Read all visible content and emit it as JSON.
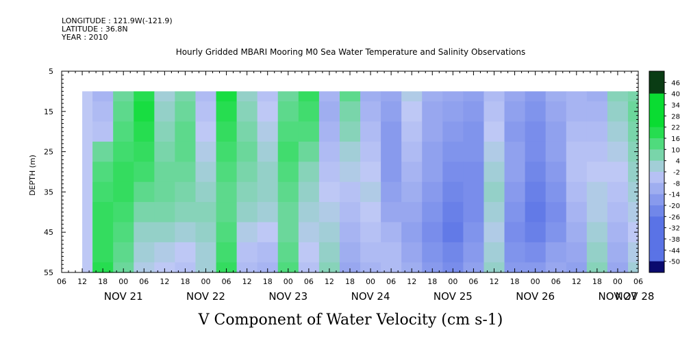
{
  "header": {
    "longitude": "LONGITUDE : 121.9W(-121.9)",
    "latitude": "LATITUDE : 36.8N",
    "year": "YEAR : 2010"
  },
  "chart_data": {
    "type": "heatmap",
    "title": "Hourly Gridded MBARI Mooring M0 Sea Water Temperature and Salinity Observations",
    "xlabel": "V Component of Water Velocity (cm s-1)",
    "ylabel": "DEPTH (m)",
    "ylim": [
      55,
      5
    ],
    "y_ticks": [
      5,
      15,
      25,
      35,
      45,
      55
    ],
    "x_start": "2010-11-21 06:00",
    "x_end": "2010-11-28 06:00",
    "x_hour_ticks": [
      "06",
      "12",
      "18",
      "00",
      "06",
      "12",
      "18",
      "00",
      "06",
      "12",
      "18",
      "00",
      "06",
      "12",
      "18",
      "00",
      "06",
      "12",
      "18",
      "00",
      "06",
      "12",
      "18",
      "00",
      "06",
      "12",
      "18",
      "00",
      "06"
    ],
    "x_day_labels": [
      "NOV 21",
      "NOV 22",
      "NOV 23",
      "NOV 24",
      "NOV 25",
      "NOV 26",
      "NOV 27",
      "NOV 28"
    ],
    "data_start": "2010-11-21 12:00",
    "data_depth_range": [
      10,
      55
    ],
    "colorbar_levels": [
      "46",
      "40",
      "34",
      "28",
      "22",
      "16",
      "10",
      "4",
      "-2",
      "-8",
      "-14",
      "-20",
      "-26",
      "-32",
      "-38",
      "-44",
      "-50"
    ],
    "colors": {
      "strong_positive": "#00c83c",
      "positive": "#28e664",
      "weak_positive": "#96f0a0",
      "near_zero": "#b4bef5",
      "weak_negative": "#a0aaf0",
      "negative": "#7d8ceb",
      "strong_negative": "#5a6ee6",
      "colorbar_top": "#0a3c14",
      "colorbar_bottom": "#0a0a6e"
    },
    "v_component_grid": {
      "depths": [
        10,
        15,
        20,
        25,
        30,
        35,
        40,
        45,
        50,
        55
      ],
      "times_hours_from_start": [
        6,
        12,
        18,
        24,
        30,
        36,
        42,
        48,
        54,
        60,
        66,
        72,
        78,
        84,
        90,
        96,
        102,
        108,
        114,
        120,
        126,
        132,
        138,
        144,
        150,
        156,
        162,
        168
      ],
      "values_cm_s": [
        [
          0,
          -6,
          12,
          22,
          4,
          10,
          -4,
          24,
          6,
          -2,
          12,
          20,
          -6,
          14,
          -8,
          -10,
          2,
          -8,
          -10,
          -12,
          -4,
          -10,
          -14,
          -8,
          -6,
          -8,
          8,
          10
        ],
        [
          0,
          -4,
          14,
          24,
          6,
          12,
          -2,
          22,
          8,
          0,
          14,
          18,
          -8,
          10,
          -6,
          -12,
          0,
          -10,
          -12,
          -14,
          -2,
          -12,
          -16,
          -10,
          -6,
          -6,
          6,
          12
        ],
        [
          0,
          -2,
          16,
          22,
          8,
          14,
          0,
          20,
          10,
          2,
          16,
          16,
          -6,
          8,
          -4,
          -14,
          -2,
          -10,
          -14,
          -16,
          0,
          -14,
          -18,
          -12,
          -4,
          -4,
          4,
          10
        ],
        [
          0,
          12,
          18,
          20,
          10,
          14,
          2,
          18,
          12,
          4,
          18,
          12,
          -4,
          4,
          -2,
          -14,
          -4,
          -12,
          -16,
          -16,
          2,
          -12,
          -18,
          -12,
          -2,
          -2,
          2,
          8
        ],
        [
          0,
          16,
          20,
          18,
          12,
          12,
          4,
          16,
          10,
          6,
          16,
          8,
          -2,
          2,
          0,
          -14,
          -6,
          -12,
          -18,
          -18,
          4,
          -12,
          -20,
          -14,
          -2,
          0,
          0,
          6
        ],
        [
          0,
          18,
          20,
          14,
          12,
          10,
          6,
          14,
          8,
          6,
          14,
          6,
          0,
          -2,
          2,
          -12,
          -8,
          -14,
          -20,
          -18,
          6,
          -14,
          -22,
          -16,
          -4,
          2,
          -2,
          4
        ],
        [
          0,
          20,
          18,
          10,
          10,
          8,
          8,
          14,
          6,
          4,
          12,
          4,
          2,
          -4,
          0,
          -10,
          -10,
          -16,
          -22,
          -18,
          4,
          -16,
          -24,
          -18,
          -6,
          2,
          -4,
          2
        ],
        [
          0,
          20,
          16,
          6,
          6,
          4,
          6,
          16,
          2,
          0,
          12,
          2,
          4,
          -6,
          -2,
          -6,
          -12,
          -18,
          -24,
          -16,
          2,
          -18,
          -22,
          -16,
          -8,
          4,
          -6,
          0
        ],
        [
          0,
          20,
          14,
          4,
          2,
          0,
          4,
          18,
          -2,
          -4,
          14,
          0,
          6,
          -8,
          -4,
          -4,
          -10,
          -16,
          -20,
          -14,
          4,
          -16,
          -18,
          -12,
          -10,
          6,
          -8,
          2
        ],
        [
          0,
          22,
          12,
          2,
          0,
          -2,
          4,
          20,
          -4,
          -6,
          16,
          -2,
          8,
          -10,
          -6,
          -4,
          -8,
          -14,
          -18,
          -12,
          6,
          -14,
          -14,
          -10,
          -12,
          8,
          -10,
          4
        ]
      ]
    }
  }
}
